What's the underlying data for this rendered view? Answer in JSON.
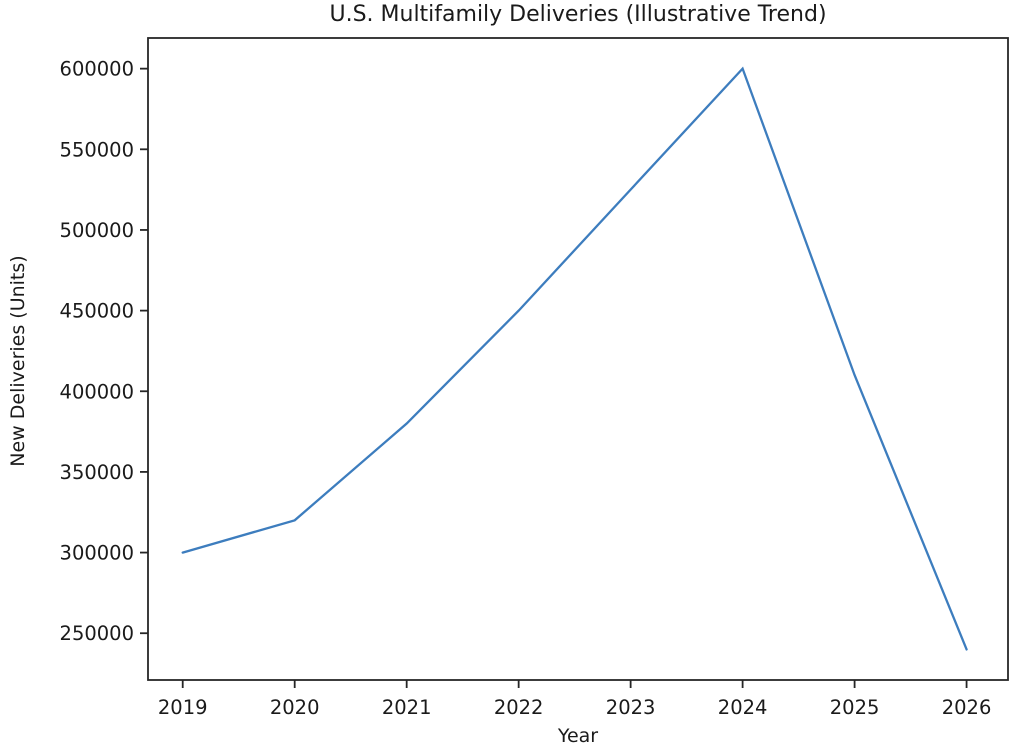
{
  "chart_data": {
    "type": "line",
    "title": "U.S. Multifamily Deliveries (Illustrative Trend)",
    "xlabel": "Year",
    "ylabel": "New Deliveries (Units)",
    "x": [
      2019,
      2020,
      2021,
      2022,
      2023,
      2024,
      2025,
      2026
    ],
    "series": [
      {
        "name": "New Deliveries",
        "values": [
          300000,
          320000,
          380000,
          450000,
          525000,
          600000,
          410000,
          240000
        ]
      }
    ],
    "x_tick_labels": [
      "2019",
      "2020",
      "2021",
      "2022",
      "2023",
      "2024",
      "2025",
      "2026"
    ],
    "y_tick_values": [
      250000,
      300000,
      350000,
      400000,
      450000,
      500000,
      550000,
      600000
    ],
    "y_tick_labels": [
      "250000",
      "300000",
      "350000",
      "400000",
      "450000",
      "500000",
      "550000",
      "600000"
    ],
    "xlim": [
      2018.69,
      2026.37
    ],
    "ylim": [
      221000,
      619000
    ],
    "grid": false,
    "legend": "none",
    "line_color": "#3d7dbe",
    "axis_color": "#262626",
    "text_color": "#1a1a1a",
    "background_color": "#ffffff"
  }
}
